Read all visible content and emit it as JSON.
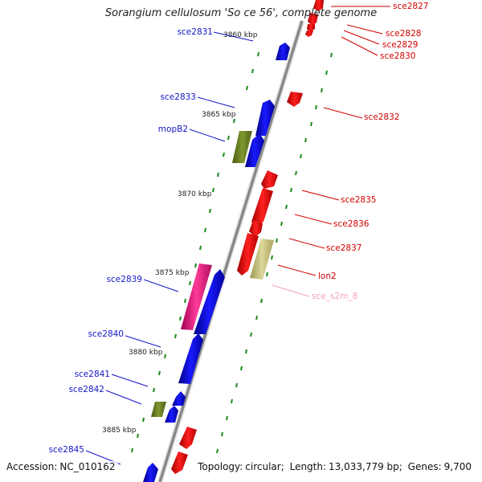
{
  "title": "Sorangium cellulosum 'So ce 56', complete genome",
  "footer": {
    "accession_label": "Accession:",
    "accession": "NC_010162",
    "topology_label": "Topology:",
    "topology": "circular;",
    "length_label": "Length:",
    "length": "13,033,779 bp;",
    "genes_label": "Genes:",
    "genes": "9,700"
  },
  "colors": {
    "forward_gene": "#0000e6",
    "reverse_gene": "#e60000",
    "rna_gene": "#6b7d1f",
    "pseudo_gene": "#c9c481",
    "magenta_gene": "#e0187a",
    "label_blue": "#1515c8",
    "label_red": "#d40000",
    "label_pink": "#f4a0c0",
    "backbone": "#8a8a8a",
    "ticks": "#1a8a1a"
  },
  "scale_ticks": [
    {
      "label": "3860 kbp"
    },
    {
      "label": "3865 kbp"
    },
    {
      "label": "3870 kbp"
    },
    {
      "label": "3875 kbp"
    },
    {
      "label": "3880 kbp"
    },
    {
      "label": "3885 kbp"
    }
  ],
  "gene_labels_left": [
    {
      "name": "sce2831",
      "color": "blue"
    },
    {
      "name": "sce2833",
      "color": "blue"
    },
    {
      "name": "mopB2",
      "color": "blue"
    },
    {
      "name": "sce2839",
      "color": "blue"
    },
    {
      "name": "sce2840",
      "color": "blue"
    },
    {
      "name": "sce2841",
      "color": "blue"
    },
    {
      "name": "sce2842",
      "color": "blue"
    },
    {
      "name": "sce2845",
      "color": "blue"
    }
  ],
  "gene_labels_right": [
    {
      "name": "sce2827",
      "color": "red"
    },
    {
      "name": "sce2828",
      "color": "red"
    },
    {
      "name": "sce2829",
      "color": "red"
    },
    {
      "name": "sce2830",
      "color": "red"
    },
    {
      "name": "sce2832",
      "color": "red"
    },
    {
      "name": "sce2835",
      "color": "red"
    },
    {
      "name": "sce2836",
      "color": "red"
    },
    {
      "name": "sce2837",
      "color": "red"
    },
    {
      "name": "lon2",
      "color": "red"
    },
    {
      "name": "sce_s2m_8",
      "color": "pink"
    }
  ]
}
